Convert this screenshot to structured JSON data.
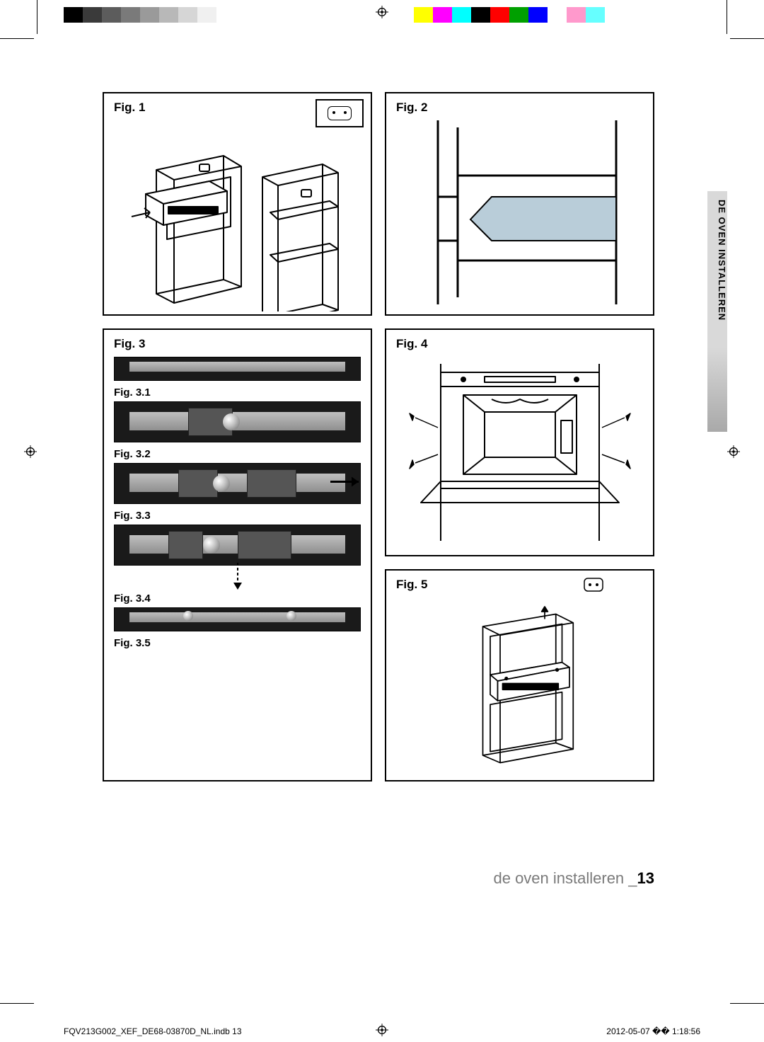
{
  "colorbar_left": [
    "#000000",
    "#3a3a3a",
    "#5c5c5c",
    "#7a7a7a",
    "#9a9a9a",
    "#b8b8b8",
    "#d6d6d6",
    "#f0f0f0",
    "#ffffff",
    "#ffffff"
  ],
  "colorbar_right": [
    "#ffff00",
    "#ff00ff",
    "#00ffff",
    "#000000",
    "#ff0000",
    "#00a000",
    "#0000ff",
    "#ffffff",
    "#ff99cc",
    "#66ffff",
    "#ffffff"
  ],
  "labels": {
    "fig1": "Fig. 1",
    "fig2": "Fig. 2",
    "fig3": "Fig. 3",
    "fig31": "Fig. 3.1",
    "fig32": "Fig. 3.2",
    "fig33": "Fig. 3.3",
    "fig34": "Fig. 3.4",
    "fig35": "Fig. 3.5",
    "fig4": "Fig. 4",
    "fig5": "Fig. 5"
  },
  "side_tab": "DE OVEN INSTALLEREN",
  "page_footer": {
    "text": "de oven installeren _",
    "pagenum": "13"
  },
  "print_footer": {
    "file": "FQV213G002_XEF_DE68-03870D_NL.indb   13",
    "timestamp": "2012-05-07   �� 1:18:56"
  },
  "figures": {
    "fig2_shade": "#b9cdd9"
  }
}
